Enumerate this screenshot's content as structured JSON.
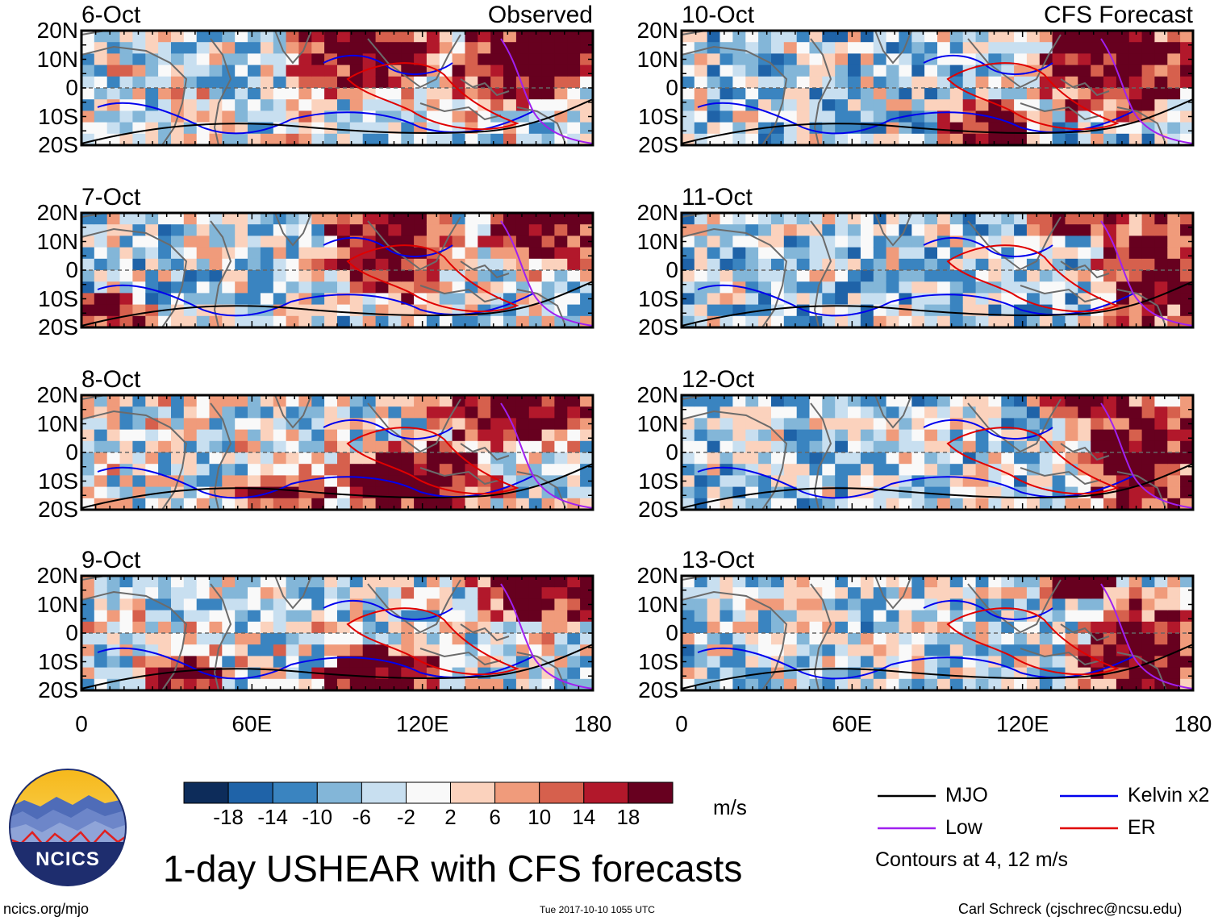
{
  "title": "1-day USHEAR with CFS forecasts",
  "units": "m/s",
  "column_labels": {
    "observed": "Observed",
    "forecast": "CFS Forecast"
  },
  "panels": [
    {
      "date": "6-Oct",
      "tag": "Observed"
    },
    {
      "date": "7-Oct",
      "tag": ""
    },
    {
      "date": "8-Oct",
      "tag": ""
    },
    {
      "date": "9-Oct",
      "tag": ""
    },
    {
      "date": "10-Oct",
      "tag": "CFS Forecast"
    },
    {
      "date": "11-Oct",
      "tag": ""
    },
    {
      "date": "12-Oct",
      "tag": ""
    },
    {
      "date": "13-Oct",
      "tag": ""
    }
  ],
  "lat_labels": [
    "20N",
    "10N",
    "0",
    "10S",
    "20S"
  ],
  "lon_labels": [
    "0",
    "60E",
    "120E",
    "180"
  ],
  "colorbar": {
    "ticks": [
      "-18",
      "-14",
      "-10",
      "-6",
      "-2",
      "2",
      "6",
      "10",
      "14",
      "18"
    ],
    "colors": [
      "#0d2c5a",
      "#1f63a8",
      "#3a84c0",
      "#83b6d8",
      "#c8dff0",
      "#f9f9f9",
      "#fbd2bd",
      "#f09b7b",
      "#d6604d",
      "#b2182b",
      "#67001f"
    ]
  },
  "legend": [
    {
      "label": "MJO",
      "color": "#000000"
    },
    {
      "label": "Kelvin x2",
      "color": "#0000ee"
    },
    {
      "label": "Low",
      "color": "#a020f0"
    },
    {
      "label": "ER",
      "color": "#e00000"
    }
  ],
  "contour_note": "Contours at 4, 12 m/s",
  "logo_text": "NCICS",
  "footer": {
    "website": "ncics.org/mjo",
    "timestamp": "Tue 2017-10-10 1055 UTC",
    "author": "Carl Schreck (cjschrec@ncsu.edu)"
  }
}
